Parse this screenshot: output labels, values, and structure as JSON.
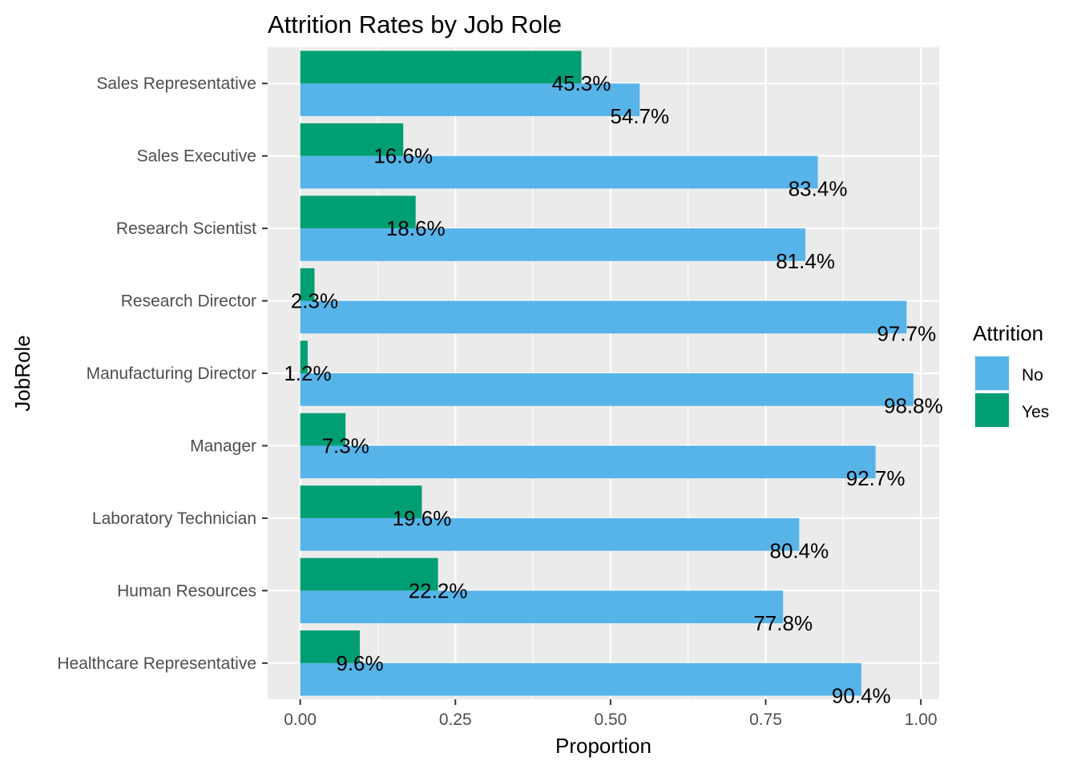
{
  "chart_data": {
    "type": "bar",
    "orientation": "horizontal",
    "title": "Attrition Rates by Job Role",
    "xlabel": "Proportion",
    "ylabel": "JobRole",
    "xlim": [
      -0.0525,
      1.0295
    ],
    "x_ticks": [
      0,
      0.25,
      0.5,
      0.75,
      1
    ],
    "x_tick_labels": [
      "0.00",
      "0.25",
      "0.50",
      "0.75",
      "1.00"
    ],
    "grid": true,
    "legend_placement": "right",
    "legend": {
      "title": "Attrition",
      "entries": [
        {
          "label": "No",
          "color": "#56B4E9"
        },
        {
          "label": "Yes",
          "color": "#009E73"
        }
      ]
    },
    "categories": [
      "Healthcare Representative",
      "Human Resources",
      "Laboratory Technician",
      "Manager",
      "Manufacturing Director",
      "Research Director",
      "Research Scientist",
      "Sales Executive",
      "Sales Representative"
    ],
    "series": [
      {
        "name": "No",
        "color": "#56B4E9",
        "values": [
          0.904,
          0.778,
          0.804,
          0.927,
          0.988,
          0.977,
          0.814,
          0.834,
          0.547
        ],
        "labels": [
          "90.4%",
          "77.8%",
          "80.4%",
          "92.7%",
          "98.8%",
          "97.7%",
          "81.4%",
          "83.4%",
          "54.7%"
        ]
      },
      {
        "name": "Yes",
        "color": "#009E73",
        "values": [
          0.096,
          0.222,
          0.196,
          0.073,
          0.012,
          0.023,
          0.186,
          0.166,
          0.453
        ],
        "labels": [
          "9.6%",
          "22.2%",
          "19.6%",
          "7.3%",
          "1.2%",
          "2.3%",
          "18.6%",
          "16.6%",
          "45.3%"
        ]
      }
    ]
  }
}
